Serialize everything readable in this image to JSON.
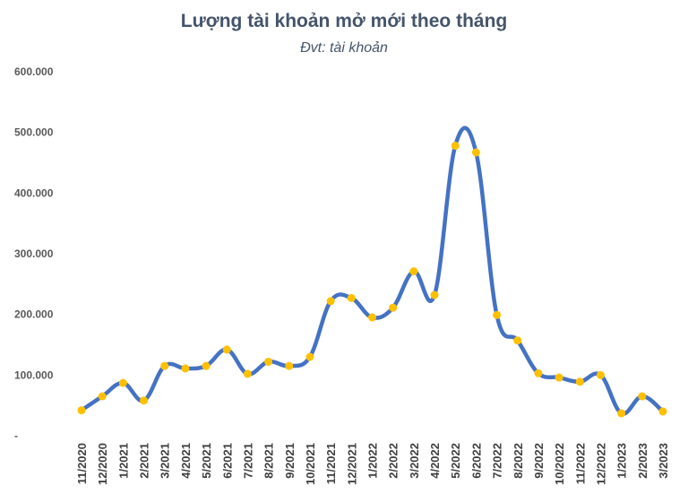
{
  "chart_data": {
    "type": "line",
    "title": "Lượng tài khoản mở mới theo tháng",
    "subtitle": "Đvt: tài khoản",
    "xlabel": "",
    "ylabel": "",
    "ylim": [
      0,
      600000
    ],
    "y_ticks": [
      {
        "value": 0,
        "label": "-"
      },
      {
        "value": 100000,
        "label": "100.000"
      },
      {
        "value": 200000,
        "label": "200.000"
      },
      {
        "value": 300000,
        "label": "300.000"
      },
      {
        "value": 400000,
        "label": "400.000"
      },
      {
        "value": 500000,
        "label": "500.000"
      },
      {
        "value": 600000,
        "label": "600.000"
      }
    ],
    "grid": false,
    "legend": "none",
    "line_color": "#4472c4",
    "marker_color": "#ffc000",
    "categories": [
      "11/2020",
      "12/2020",
      "1/2021",
      "2/2021",
      "3/2021",
      "4/2021",
      "5/2021",
      "6/2021",
      "7/2021",
      "8/2021",
      "9/2021",
      "10/2021",
      "11/2021",
      "12/2021",
      "1/2022",
      "2/2022",
      "3/2022",
      "4/2022",
      "5/2022",
      "6/2022",
      "7/2022",
      "8/2022",
      "9/2022",
      "10/2022",
      "11/2022",
      "12/2022",
      "1/2023",
      "2/2023",
      "3/2023"
    ],
    "series": [
      {
        "values": [
          42000,
          65000,
          87000,
          58000,
          115000,
          111000,
          115000,
          142000,
          102000,
          122000,
          115000,
          130000,
          222000,
          227000,
          195000,
          211000,
          271000,
          232000,
          478000,
          467000,
          199000,
          157000,
          103000,
          96000,
          89000,
          100000,
          37000,
          65000,
          40000
        ]
      }
    ]
  }
}
